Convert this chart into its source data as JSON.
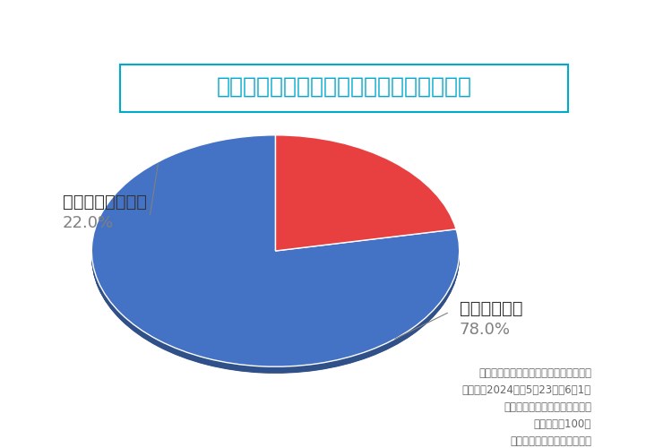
{
  "title": "ドバイの騒音対策は十分だと思いますか？",
  "slices": [
    78.0,
    22.0
  ],
  "labels": [
    "十分だと思う",
    "十分だと思わない"
  ],
  "percentages": [
    "78.0%",
    "22.0%"
  ],
  "colors": [
    "#4472C4",
    "#E84040"
  ],
  "shadow_color": "#2B549A",
  "background_color": "#FFFFFF",
  "title_color": "#00AACC",
  "title_fontsize": 18,
  "label_fontsize": 14,
  "pct_fontsize": 13,
  "footnote_lines": [
    "調査概要：ドバイでの生活に関する調査",
    "調査日：2024年　5月23日～6月1日",
    "調査方法：インターネット調査",
    "調査人数：100人",
    "調査対象：ドバイ在住日本人"
  ],
  "footnote_fontsize": 8.5
}
